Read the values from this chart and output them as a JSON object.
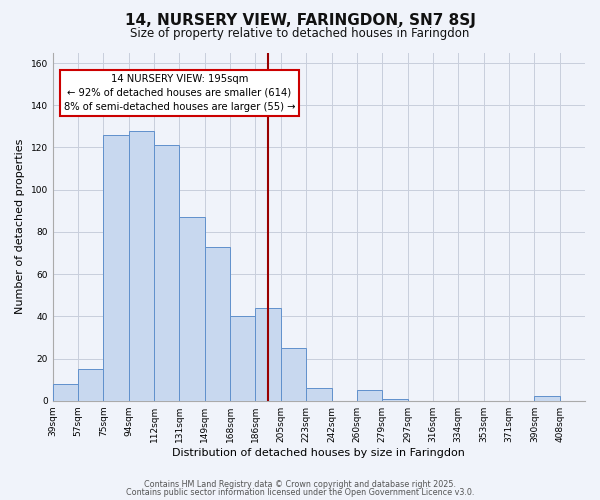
{
  "title": "14, NURSERY VIEW, FARINGDON, SN7 8SJ",
  "subtitle": "Size of property relative to detached houses in Faringdon",
  "xlabel": "Distribution of detached houses by size in Faringdon",
  "ylabel": "Number of detached properties",
  "bin_labels": [
    "39sqm",
    "57sqm",
    "75sqm",
    "94sqm",
    "112sqm",
    "131sqm",
    "149sqm",
    "168sqm",
    "186sqm",
    "205sqm",
    "223sqm",
    "242sqm",
    "260sqm",
    "279sqm",
    "297sqm",
    "316sqm",
    "334sqm",
    "353sqm",
    "371sqm",
    "390sqm",
    "408sqm"
  ],
  "counts": [
    8,
    15,
    126,
    128,
    121,
    87,
    73,
    40,
    44,
    25,
    6,
    0,
    5,
    1,
    0,
    0,
    0,
    0,
    0,
    2,
    0
  ],
  "bar_facecolor": "#c8d8ef",
  "bar_edgecolor": "#6090cc",
  "marker_bin_index": 8.5,
  "marker_color": "#990000",
  "annotation_title": "14 NURSERY VIEW: 195sqm",
  "annotation_line1": "← 92% of detached houses are smaller (614)",
  "annotation_line2": "8% of semi-detached houses are larger (55) →",
  "annotation_box_edgecolor": "#cc0000",
  "ylim": [
    0,
    165
  ],
  "yticks": [
    0,
    20,
    40,
    60,
    80,
    100,
    120,
    140,
    160
  ],
  "footer1": "Contains HM Land Registry data © Crown copyright and database right 2025.",
  "footer2": "Contains public sector information licensed under the Open Government Licence v3.0.",
  "background_color": "#f0f3fa",
  "grid_color": "#c8cedc",
  "title_fontsize": 11,
  "subtitle_fontsize": 8.5
}
